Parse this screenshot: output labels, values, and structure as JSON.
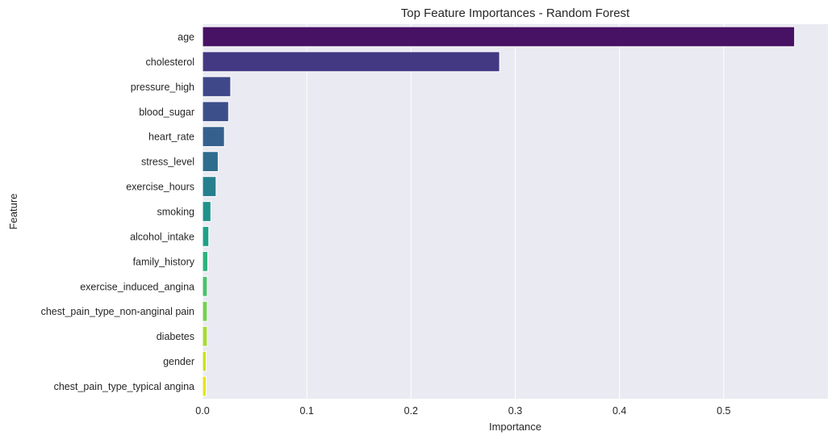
{
  "chart_data": {
    "type": "bar",
    "orientation": "horizontal",
    "title": "Top Feature Importances - Random Forest",
    "xlabel": "Importance",
    "ylabel": "Feature",
    "xlim": [
      0,
      0.6
    ],
    "xticks": [
      0.0,
      0.1,
      0.2,
      0.3,
      0.4,
      0.5
    ],
    "xtick_labels": [
      "0.0",
      "0.1",
      "0.2",
      "0.3",
      "0.4",
      "0.5"
    ],
    "grid": "vertical",
    "background": "#eaeaf2",
    "categories": [
      "age",
      "cholesterol",
      "pressure_high",
      "blood_sugar",
      "heart_rate",
      "stress_level",
      "exercise_hours",
      "smoking",
      "alcohol_intake",
      "family_history",
      "exercise_induced_angina",
      "chest_pain_type_non-anginal pain",
      "diabetes",
      "gender",
      "chest_pain_type_typical angina"
    ],
    "values": [
      0.568,
      0.285,
      0.027,
      0.025,
      0.021,
      0.015,
      0.013,
      0.008,
      0.006,
      0.005,
      0.0045,
      0.0045,
      0.0045,
      0.0035,
      0.0035
    ],
    "colors": [
      "#471164",
      "#433982",
      "#3f4889",
      "#3c4f8a",
      "#35608d",
      "#2f6c8e",
      "#277f8e",
      "#20928c",
      "#1fa187",
      "#2db27d",
      "#4ac16d",
      "#75d054",
      "#a8db34",
      "#cde11d",
      "#e4e51a"
    ]
  }
}
